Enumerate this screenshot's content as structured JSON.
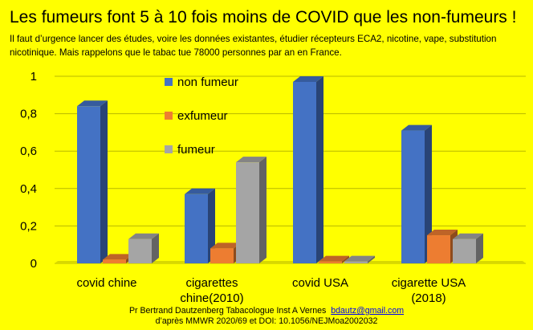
{
  "title": "Les fumeurs font 5 à 10 fois moins de COVID que les non-fumeurs !",
  "subtitle": "Il faut d’urgence lancer des études, voire les données existantes, étudier récepteurs ECA2, nicotine, vape, substitution nicotinique. Mais rappelons que le tabac tue 78000 personnes par an en France.",
  "footer": {
    "author": "Pr Bertrand Dautzenberg Tabacologue Inst A Vernes",
    "email": "bdautz@gmail.com",
    "source": "d’après MMWR 2020/69 et DOI: 10.1056/NEJMoa2002032"
  },
  "colors": {
    "non_fumeur": "#4472c4",
    "exfumeur": "#ed7d31",
    "fumeur": "#a5a5a5",
    "background": "#ffff00"
  },
  "chart_data": {
    "type": "bar",
    "style": "3d-clustered-column",
    "categories": [
      [
        "covid chine"
      ],
      [
        "cigarettes",
        "chine(2010)"
      ],
      [
        "covid USA"
      ],
      [
        "cigarette USA",
        "(2018)"
      ]
    ],
    "series": [
      {
        "name": "non fumeur",
        "values": [
          0.84,
          0.37,
          0.97,
          0.71
        ]
      },
      {
        "name": "exfumeur",
        "values": [
          0.02,
          0.08,
          0.01,
          0.15
        ]
      },
      {
        "name": "fumeur",
        "values": [
          0.13,
          0.54,
          0.01,
          0.13
        ]
      }
    ],
    "yticks": [
      "0",
      "0,2",
      "0,4",
      "0,6",
      "0,8",
      "1"
    ],
    "ylim": [
      0,
      1
    ],
    "grid": true,
    "legend": "top-left-inside"
  }
}
